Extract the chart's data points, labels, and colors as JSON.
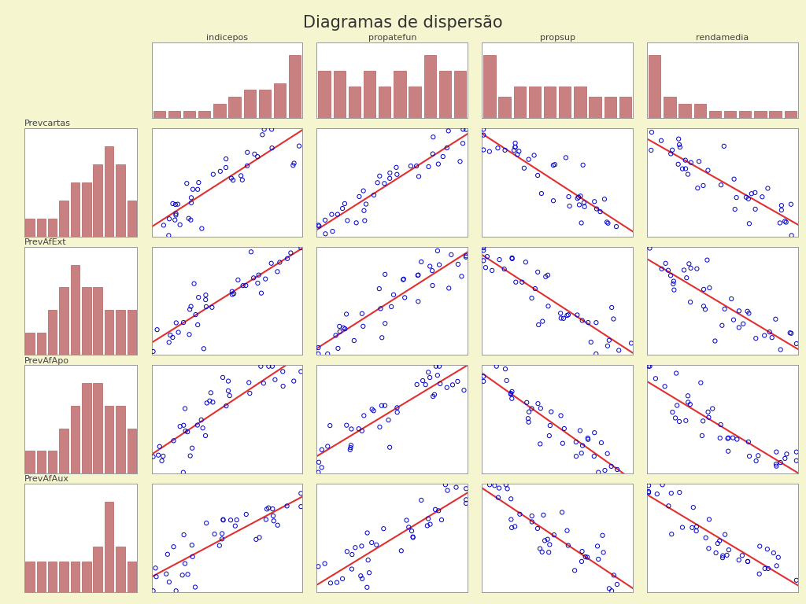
{
  "title": "Diagramas de dispersão",
  "title_fontsize": 15,
  "background_color": "#f5f5d0",
  "panel_bg": "#ffffff",
  "bar_color": "#c98080",
  "bar_edge_color": "#b06060",
  "scatter_color": "#0000cc",
  "line_color": "#e03030",
  "col_labels": [
    "indicepos",
    "propatefun",
    "propsup",
    "rendamedia"
  ],
  "row_labels": [
    "Prevcartas",
    "PrevAfExt",
    "PrevAfApo",
    "PrevAfAux"
  ],
  "seed": 42,
  "n_points": 38,
  "indicepos_hist": [
    1,
    1,
    1,
    1,
    2,
    3,
    4,
    4,
    5,
    9
  ],
  "propatefun_hist": [
    3,
    3,
    2,
    3,
    2,
    3,
    2,
    4,
    3,
    3
  ],
  "propsup_hist": [
    6,
    2,
    3,
    3,
    3,
    3,
    3,
    2,
    2,
    2
  ],
  "rendamedia_hist": [
    9,
    3,
    2,
    2,
    1,
    1,
    1,
    1,
    1,
    1
  ],
  "Prevcartas_hist": [
    1,
    1,
    1,
    2,
    3,
    3,
    4,
    5,
    4,
    2
  ],
  "PrevAfExt_hist": [
    1,
    1,
    2,
    3,
    4,
    3,
    3,
    2,
    2,
    2
  ],
  "PrevAfApo_hist": [
    1,
    1,
    1,
    2,
    3,
    4,
    4,
    3,
    3,
    2
  ],
  "PrevAfAux_hist": [
    2,
    2,
    2,
    2,
    2,
    2,
    3,
    6,
    3,
    2
  ]
}
